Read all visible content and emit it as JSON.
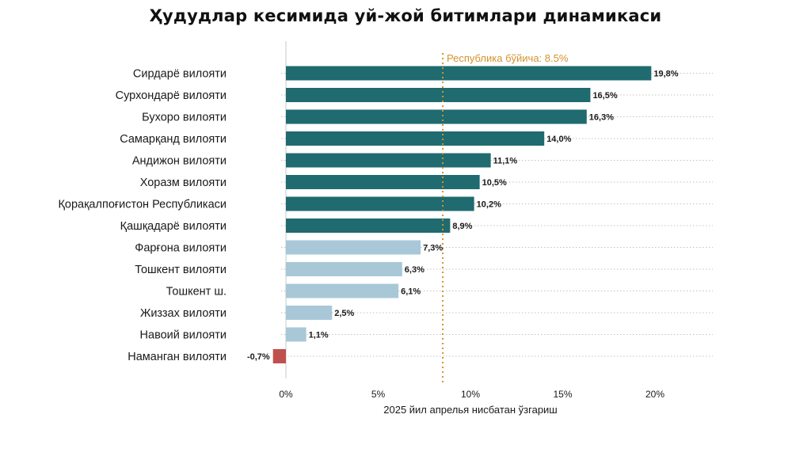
{
  "chart_data": {
    "type": "bar",
    "orientation": "horizontal",
    "title": "Ҳудудлар кесимида уй-жой битимлари динамикаси",
    "xlabel": "2025 йил апрелья нисбатан ўзгариш",
    "ylabel": "",
    "xlim": [
      0,
      20
    ],
    "x_ticks": [
      "0%",
      "5%",
      "10%",
      "15%",
      "20%"
    ],
    "x_tick_values": [
      0,
      5,
      10,
      15,
      20
    ],
    "grid": true,
    "reference_line": {
      "value": 8.5,
      "label": "Республика бўйича: 8.5%",
      "color": "#d4932e"
    },
    "categories": [
      "Сирдарё вилояти",
      "Сурхондарё вилояти",
      "Бухоро вилояти",
      "Самарқанд вилояти",
      "Андижон вилояти",
      "Хоразм вилояти",
      "Қорақалпоғистон Республикаси",
      "Қашқадарё вилояти",
      "Фарғона вилояти",
      "Тошкент вилояти",
      "Тошкент ш.",
      "Жиззах вилояти",
      "Навоий вилояти",
      "Наманган вилояти"
    ],
    "values": [
      19.8,
      16.5,
      16.3,
      14.0,
      11.1,
      10.5,
      10.2,
      8.9,
      7.3,
      6.3,
      6.1,
      2.5,
      1.1,
      -0.7
    ],
    "value_labels": [
      "19,8%",
      "16,5%",
      "16,3%",
      "14,0%",
      "11,1%",
      "10,5%",
      "10,2%",
      "8,9%",
      "7,3%",
      "6,3%",
      "6,1%",
      "2,5%",
      "1,1%",
      "-0,7%"
    ],
    "colors": {
      "above_reference": "#1f6b6f",
      "below_reference": "#a8c8d8",
      "negative": "#c0504d"
    }
  }
}
